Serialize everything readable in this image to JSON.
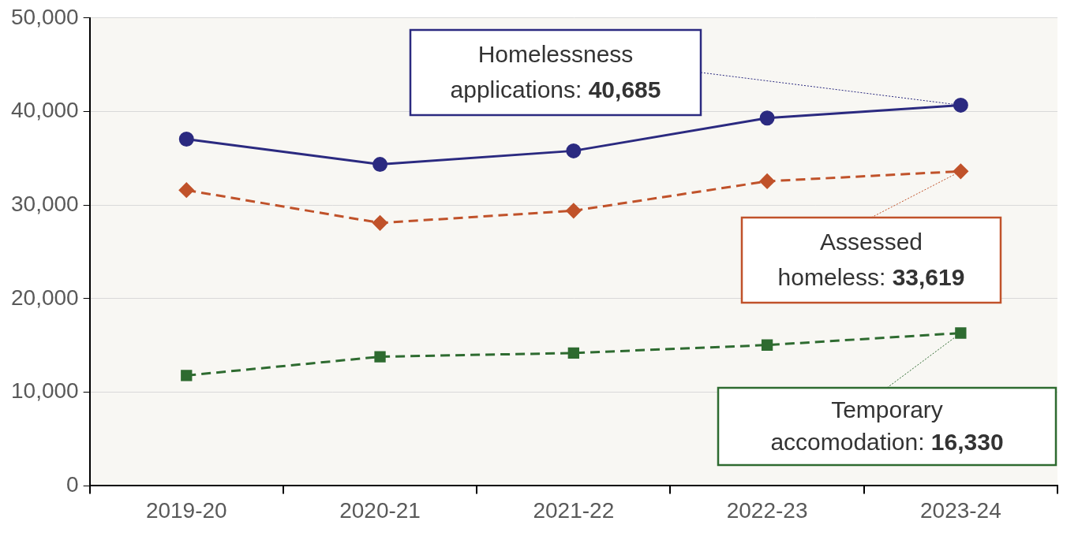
{
  "chart_data": {
    "type": "line",
    "categories": [
      "2019-20",
      "2020-21",
      "2021-22",
      "2022-23",
      "2023-24"
    ],
    "series": [
      {
        "name": "Homelessness applications:",
        "color": "#2b2a80",
        "marker": "circle",
        "line_style": "solid",
        "values": [
          37050,
          34350,
          35800,
          39300,
          40685
        ],
        "value_labels": [
          null,
          null,
          null,
          null,
          "40,685"
        ]
      },
      {
        "name": "Assessed homeless:",
        "color": "#c0522a",
        "marker": "diamond",
        "line_style": "dashed",
        "values": [
          31600,
          28100,
          29400,
          32550,
          33619
        ],
        "value_labels": [
          null,
          null,
          null,
          null,
          "33,619"
        ]
      },
      {
        "name": "Temporary accomodation:",
        "color": "#2e6b30",
        "marker": "square",
        "line_style": "dashed",
        "values": [
          11800,
          13800,
          14200,
          15050,
          16330
        ],
        "value_labels": [
          null,
          null,
          null,
          null,
          "16,330"
        ]
      }
    ],
    "ylim": [
      0,
      50000
    ],
    "yticks": [
      0,
      {
        "value": 10000,
        "label": "10,000"
      },
      {
        "value": 20000,
        "label": "20,000"
      },
      {
        "value": 30000,
        "label": "30,000"
      },
      {
        "value": 40000,
        "label": "40,000"
      },
      {
        "value": 50000,
        "label": "50,000"
      }
    ],
    "grid": true,
    "legend": false
  }
}
